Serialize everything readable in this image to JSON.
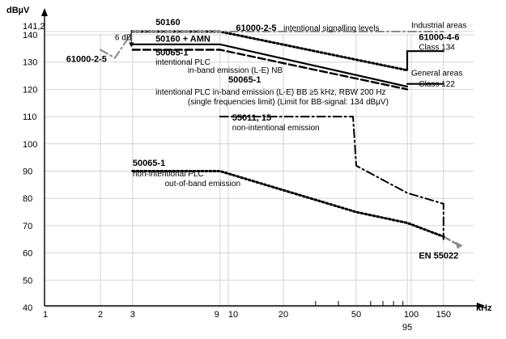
{
  "chart_data": {
    "type": "line",
    "x_scale": "log",
    "xlim": [
      1,
      150
    ],
    "ylim": [
      40,
      141.2
    ],
    "grid": true,
    "ylabel": "dBµV",
    "xlabel": "kHz",
    "x_ticks": [
      {
        "value": 1,
        "label": "1"
      },
      {
        "value": 2,
        "label": "2"
      },
      {
        "value": 3,
        "label": "3"
      },
      {
        "value": 9,
        "label": "9"
      },
      {
        "value": 10,
        "label": "10"
      },
      {
        "value": 20,
        "label": "20"
      },
      {
        "value": 50,
        "label": "50"
      },
      {
        "value": 95,
        "label": "95"
      },
      {
        "value": 100,
        "label": "100"
      },
      {
        "value": 150,
        "label": "150"
      }
    ],
    "y_ticks": [
      {
        "value": 40,
        "label": "40"
      },
      {
        "value": 50,
        "label": "50"
      },
      {
        "value": 60,
        "label": "60"
      },
      {
        "value": 70,
        "label": "70"
      },
      {
        "value": 80,
        "label": "80"
      },
      {
        "value": 90,
        "label": "90"
      },
      {
        "value": 100,
        "label": "100"
      },
      {
        "value": 110,
        "label": "110"
      },
      {
        "value": 120,
        "label": "120"
      },
      {
        "value": 130,
        "label": "130"
      },
      {
        "value": 140,
        "label": "140"
      },
      {
        "value": 141.2,
        "label": "141,2"
      }
    ],
    "series": [
      {
        "name": "50160",
        "style": "dotted",
        "color": "#000000",
        "x": [
          3,
          9,
          95
        ],
        "y": [
          141.2,
          141.2,
          127
        ]
      },
      {
        "name": "50160 + AMN",
        "style": "solid",
        "color": "#000000",
        "x": [
          3,
          9,
          95
        ],
        "y": [
          136.5,
          136.5,
          121
        ]
      },
      {
        "name": "50065-1",
        "style": "dashed",
        "color": "#000000",
        "x": [
          3,
          9,
          95
        ],
        "y": [
          134.5,
          134.5,
          120
        ]
      },
      {
        "name": "61000-2-5",
        "style": "dashdot",
        "color": "#888888",
        "x": [
          2,
          2.4,
          3,
          9,
          95,
          150
        ],
        "y": [
          134.5,
          131.5,
          141.2,
          141.2,
          141.2,
          141.2
        ]
      },
      {
        "name": "55011, 15",
        "style": "dashdot",
        "color": "#000000",
        "x": [
          9,
          48,
          50,
          95,
          150,
          150
        ],
        "y": [
          110,
          110,
          92,
          82,
          78,
          65
        ]
      },
      {
        "name": "EN 55022",
        "style": "dashed",
        "color": "#888888",
        "x": [
          150,
          180
        ],
        "y": [
          66,
          63
        ]
      },
      {
        "name": "50065-1 out-of-band",
        "style": "dotted",
        "color": "#000000",
        "x": [
          3,
          9,
          50,
          95,
          150
        ],
        "y": [
          90,
          90,
          75,
          71,
          66
        ]
      },
      {
        "name": "61000-4-6 Class 134",
        "style": "solid",
        "color": "#000000",
        "x": [
          95,
          95,
          150
        ],
        "y": [
          127,
          134,
          134
        ]
      },
      {
        "name": "61000-4-6 Class 122",
        "style": "solid",
        "color": "#000000",
        "x": [
          95,
          150
        ],
        "y": [
          122,
          122
        ]
      }
    ],
    "annotations": [
      {
        "text": "50160",
        "x": 4,
        "y": 143.5
      },
      {
        "text": "6 dB",
        "x": 2.4,
        "y": 138
      },
      {
        "text": "50160 + AMN",
        "x": 4,
        "y": 137.5
      },
      {
        "text": "61000-2-5",
        "x": 11,
        "y": 141.5
      },
      {
        "text": "intentional signalling levels",
        "x": 20,
        "y": 141.5
      },
      {
        "text": "Industrial areas",
        "x": 100,
        "y": 142.5
      },
      {
        "text": "61000-4-6",
        "x": 110,
        "y": 138
      },
      {
        "text": "Class 134",
        "x": 110,
        "y": 134.5
      },
      {
        "text": "61000-2-5",
        "x": 1.3,
        "y": 130
      },
      {
        "text": "50065-1",
        "x": 4,
        "y": 132.5
      },
      {
        "text": "intentional PLC",
        "x": 4,
        "y": 129
      },
      {
        "text": "in-band emission (L-E) NB",
        "x": 6,
        "y": 126
      },
      {
        "text": "General areas",
        "x": 100,
        "y": 125
      },
      {
        "text": "Class 122",
        "x": 110,
        "y": 121
      },
      {
        "text": "50065-1",
        "x": 10,
        "y": 122.5
      },
      {
        "text": "intentional PLC in-band emission (L-E) BB ≥5 kHz, RBW 200 Hz",
        "x": 4,
        "y": 118
      },
      {
        "text": "(single frequencies limit) (Limit for BB-signal: 134 dBµV)",
        "x": 6,
        "y": 114.5
      },
      {
        "text": "55011, 15",
        "x": 10.5,
        "y": 108.5
      },
      {
        "text": "non-intentional emission",
        "x": 10.5,
        "y": 105
      },
      {
        "text": "50065-1",
        "x": 3,
        "y": 92
      },
      {
        "text": "non-intentional PLC",
        "x": 3,
        "y": 88
      },
      {
        "text": "out-of-band emission",
        "x": 4.5,
        "y": 84.5
      },
      {
        "text": "EN 55022",
        "x": 110,
        "y": 58
      }
    ]
  }
}
